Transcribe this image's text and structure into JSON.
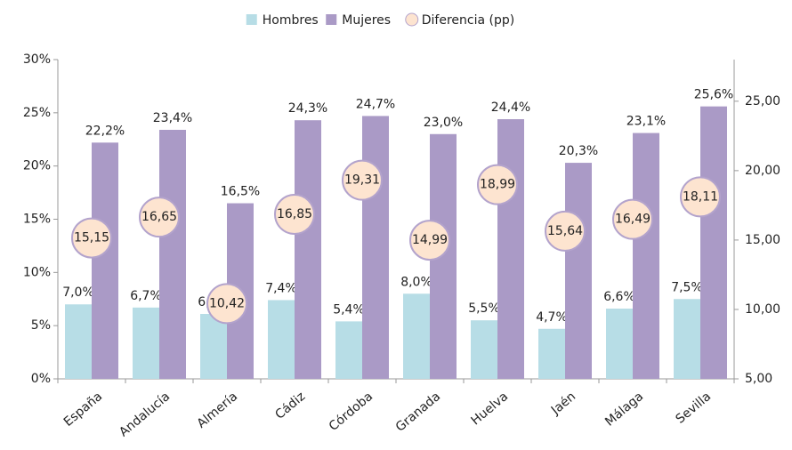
{
  "chart_data": {
    "type": "bar",
    "categories": [
      "España",
      "Andalucía",
      "Almería",
      "Cádiz",
      "Córdoba",
      "Granada",
      "Huelva",
      "Jaén",
      "Málaga",
      "Sevilla"
    ],
    "series": [
      {
        "name": "Hombres",
        "color": "#b7dde6",
        "values": [
          7.0,
          6.7,
          6.1,
          7.4,
          5.4,
          8.0,
          5.5,
          4.7,
          6.6,
          7.5
        ],
        "value_labels": [
          "7,0%",
          "6,7%",
          "6,1%",
          "7,4%",
          "5,4%",
          "8,0%",
          "5,5%",
          "4,7%",
          "6,6%",
          "7,5%"
        ]
      },
      {
        "name": "Mujeres",
        "color": "#aa9ac6",
        "values": [
          22.2,
          23.4,
          16.5,
          24.3,
          24.7,
          23.0,
          24.4,
          20.3,
          23.1,
          25.6
        ],
        "value_labels": [
          "22,2%",
          "23,4%",
          "16,5%",
          "24,3%",
          "24,7%",
          "23,0%",
          "24,4%",
          "20,3%",
          "23,1%",
          "25,6%"
        ]
      },
      {
        "name": "Diferencia (pp)",
        "type": "scatter",
        "axis": "y2",
        "color": "#fde4d0",
        "edge_color": "#b3a3cc",
        "values": [
          15.15,
          16.65,
          10.42,
          16.85,
          19.31,
          14.99,
          18.99,
          15.64,
          16.49,
          18.11
        ],
        "value_labels": [
          "15,15",
          "16,65",
          "10,42",
          "16,85",
          "19,31",
          "14,99",
          "18,99",
          "15,64",
          "16,49",
          "18,11"
        ]
      }
    ],
    "ylim": [
      0,
      30
    ],
    "yticks": [
      {
        "value": 0,
        "label": "0%"
      },
      {
        "value": 5,
        "label": "5%"
      },
      {
        "value": 10,
        "label": "10%"
      },
      {
        "value": 15,
        "label": "15%"
      },
      {
        "value": 20,
        "label": "20%"
      },
      {
        "value": 25,
        "label": "25%"
      },
      {
        "value": 30,
        "label": "30%"
      }
    ],
    "y2lim": [
      5,
      28
    ],
    "y2ticks": [
      {
        "value": 5,
        "label": "5,00"
      },
      {
        "value": 10,
        "label": "10,00"
      },
      {
        "value": 15,
        "label": "15,00"
      },
      {
        "value": 20,
        "label": "20,00"
      },
      {
        "value": 25,
        "label": "25,00"
      }
    ],
    "legend": "top",
    "grid": false
  }
}
